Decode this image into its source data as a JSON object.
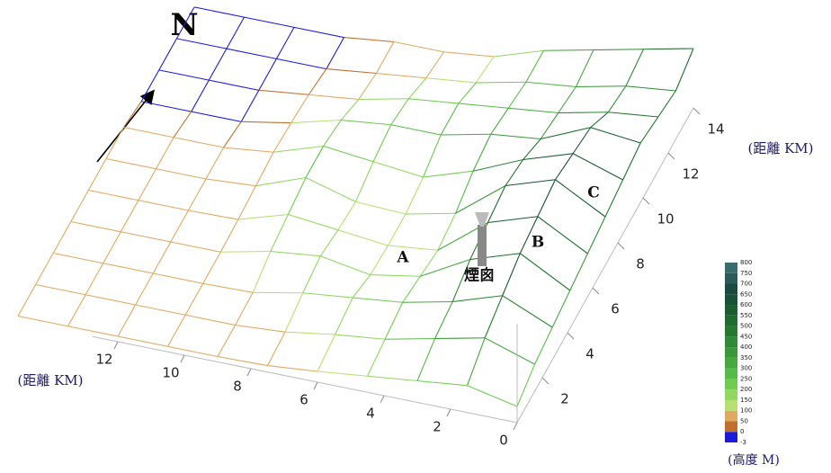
{
  "chart_data": {
    "type": "surface",
    "x_axis_title": "(距離 KM)",
    "y_axis_title": "(距離 KM)",
    "xlim": [
      0,
      15
    ],
    "ylim": [
      0,
      14
    ],
    "xticks": [
      0,
      2,
      4,
      6,
      8,
      10,
      12
    ],
    "yticks": [
      2,
      4,
      6,
      8,
      10,
      12,
      14
    ],
    "x": [
      0,
      1.5,
      3,
      4.5,
      6,
      7.5,
      9,
      10.5,
      12,
      13.5,
      15
    ],
    "y": [
      0,
      1.4,
      2.8,
      4.2,
      5.6,
      7,
      8.4,
      9.8,
      11.2,
      12.6,
      14
    ],
    "z": [
      [
        150,
        250,
        200,
        150,
        100,
        60,
        50,
        50,
        50,
        50,
        50
      ],
      [
        250,
        400,
        300,
        200,
        150,
        80,
        50,
        50,
        50,
        50,
        50
      ],
      [
        300,
        500,
        350,
        250,
        200,
        150,
        60,
        50,
        50,
        50,
        50
      ],
      [
        350,
        600,
        450,
        200,
        120,
        200,
        150,
        50,
        50,
        50,
        50
      ],
      [
        400,
        650,
        500,
        150,
        100,
        150,
        200,
        60,
        50,
        50,
        50
      ],
      [
        450,
        700,
        550,
        200,
        100,
        120,
        250,
        80,
        50,
        50,
        50
      ],
      [
        500,
        650,
        500,
        300,
        150,
        200,
        250,
        100,
        50,
        50,
        50
      ],
      [
        550,
        600,
        400,
        350,
        250,
        250,
        200,
        80,
        -3,
        -3,
        -3
      ],
      [
        500,
        450,
        350,
        300,
        250,
        200,
        100,
        50,
        -3,
        -3,
        -3
      ],
      [
        450,
        400,
        300,
        250,
        150,
        100,
        50,
        -3,
        -3,
        -3,
        -3
      ],
      [
        550,
        450,
        350,
        250,
        100,
        50,
        50,
        -3,
        -3,
        -3,
        -3
      ]
    ],
    "legend": {
      "title": "(高度 M)",
      "levels": [
        -3,
        0,
        50,
        100,
        150,
        200,
        250,
        300,
        350,
        400,
        450,
        500,
        550,
        600,
        650,
        700,
        750,
        800
      ],
      "colors": [
        "#1a1ad8",
        "#c0702c",
        "#e0a860",
        "#b8e070",
        "#90d860",
        "#70cc50",
        "#58bb48",
        "#48a840",
        "#3a9838",
        "#2e8a34",
        "#267a30",
        "#1f6c2e",
        "#1a5e30",
        "#175236",
        "#1a4a40",
        "#2a5a5a",
        "#3a6c6c"
      ]
    },
    "north": "N",
    "annotations": [
      "A",
      "B",
      "C",
      "煙囪"
    ]
  }
}
